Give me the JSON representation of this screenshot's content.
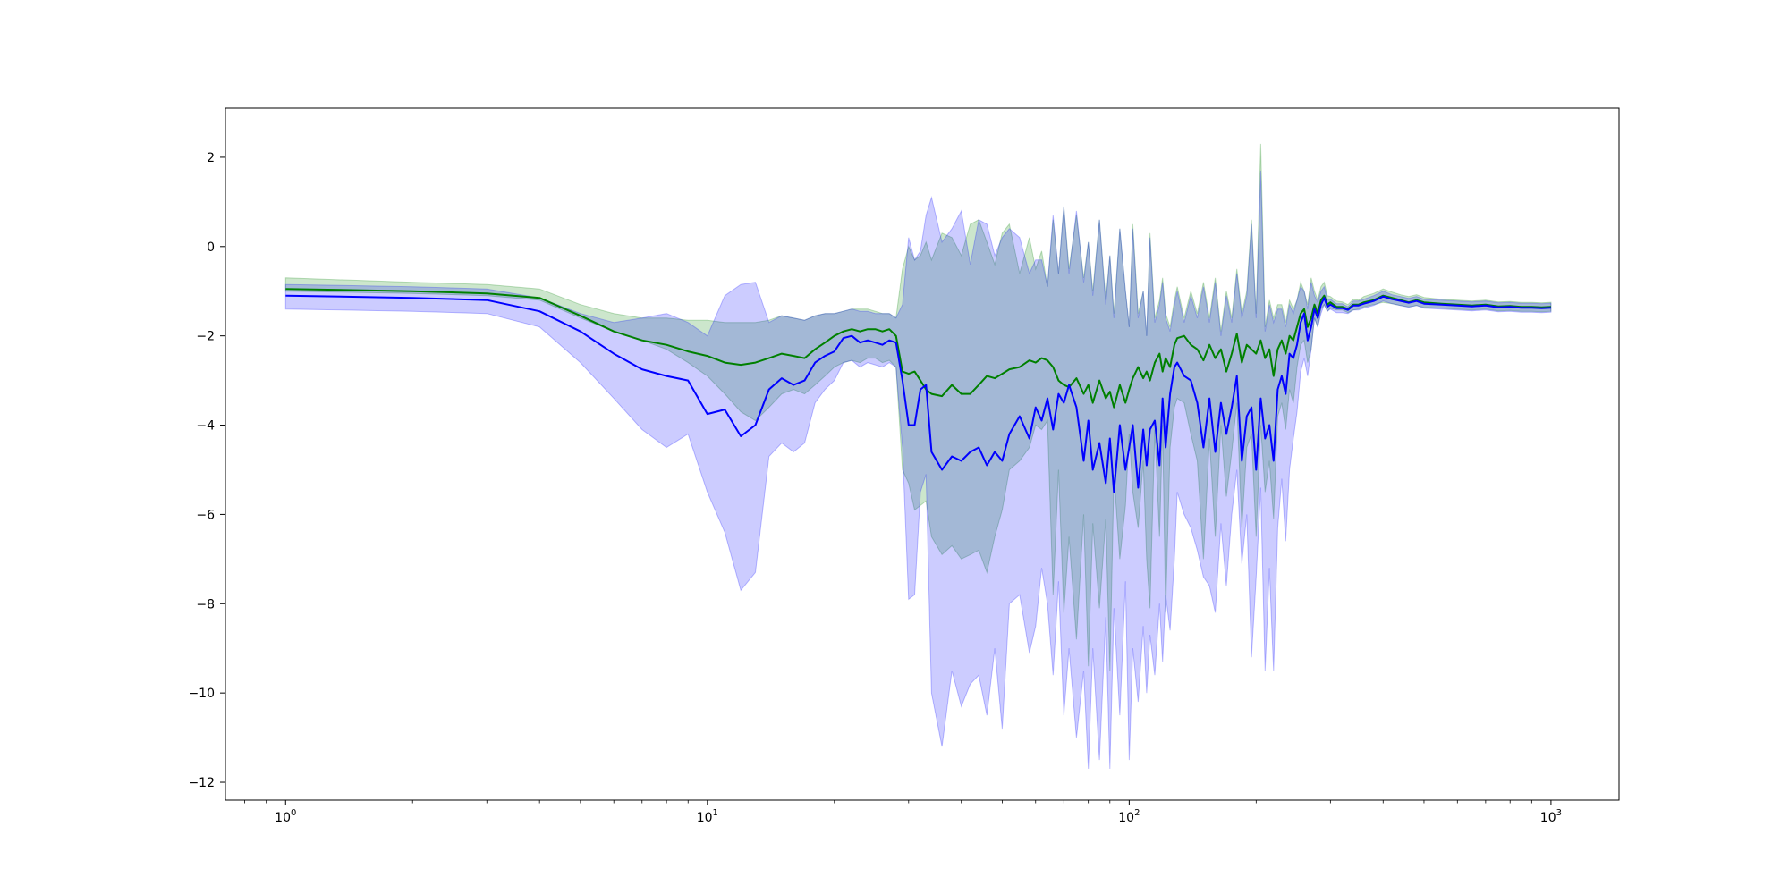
{
  "chart_data": {
    "type": "line",
    "title": "",
    "xlabel": "",
    "ylabel": "",
    "xscale": "log",
    "xlim": [
      0.72,
      1450
    ],
    "ylim": [
      -12.4,
      3.1
    ],
    "grid": false,
    "legend": "none",
    "xticks": [
      {
        "base": "10",
        "exp": "0",
        "value": 1
      },
      {
        "base": "10",
        "exp": "1",
        "value": 10
      },
      {
        "base": "10",
        "exp": "2",
        "value": 100
      },
      {
        "base": "10",
        "exp": "3",
        "value": 1000
      }
    ],
    "yticks": [
      {
        "label": "2",
        "value": 2
      },
      {
        "label": "0",
        "value": 0
      },
      {
        "label": "−2",
        "value": -2
      },
      {
        "label": "−4",
        "value": -4
      },
      {
        "label": "−6",
        "value": -6
      },
      {
        "label": "−8",
        "value": -8
      },
      {
        "label": "−10",
        "value": -10
      },
      {
        "label": "−12",
        "value": -12
      }
    ],
    "series": [
      {
        "color": "#008000",
        "band_color": "#008000",
        "x": [
          1,
          2,
          3,
          4,
          5,
          6,
          7,
          8,
          9,
          10,
          11,
          12,
          13,
          14,
          15,
          16,
          17,
          18,
          19,
          20,
          21,
          22,
          23,
          24,
          25,
          26,
          27,
          28,
          29,
          30,
          31,
          32,
          33,
          34,
          36,
          38,
          40,
          42,
          44,
          46,
          48,
          50,
          52,
          55,
          58,
          60,
          62,
          64,
          66,
          68,
          70,
          72,
          75,
          78,
          80,
          82,
          85,
          88,
          90,
          92,
          95,
          98,
          100,
          102,
          105,
          108,
          110,
          112,
          115,
          118,
          120,
          122,
          125,
          128,
          130,
          135,
          140,
          145,
          150,
          155,
          160,
          165,
          170,
          175,
          180,
          185,
          190,
          195,
          200,
          205,
          210,
          215,
          220,
          225,
          230,
          235,
          240,
          245,
          250,
          255,
          260,
          265,
          270,
          275,
          280,
          285,
          290,
          295,
          300,
          310,
          320,
          330,
          340,
          350,
          360,
          380,
          400,
          420,
          440,
          460,
          480,
          500,
          550,
          600,
          650,
          700,
          750,
          800,
          850,
          900,
          950,
          1000
        ],
        "y": [
          -0.95,
          -1.0,
          -1.05,
          -1.15,
          -1.55,
          -1.9,
          -2.1,
          -2.2,
          -2.35,
          -2.45,
          -2.6,
          -2.65,
          -2.6,
          -2.5,
          -2.4,
          -2.45,
          -2.5,
          -2.3,
          -2.15,
          -2.0,
          -1.9,
          -1.85,
          -1.9,
          -1.85,
          -1.85,
          -1.9,
          -1.85,
          -2.0,
          -2.8,
          -2.85,
          -2.8,
          -3.0,
          -3.2,
          -3.3,
          -3.35,
          -3.1,
          -3.3,
          -3.3,
          -3.1,
          -2.9,
          -2.95,
          -2.85,
          -2.75,
          -2.7,
          -2.55,
          -2.6,
          -2.5,
          -2.55,
          -2.7,
          -3.0,
          -3.1,
          -3.15,
          -2.95,
          -3.3,
          -3.1,
          -3.5,
          -3.0,
          -3.4,
          -3.25,
          -3.6,
          -3.1,
          -3.5,
          -3.2,
          -2.95,
          -2.7,
          -2.95,
          -2.8,
          -3.0,
          -2.6,
          -2.4,
          -2.8,
          -2.5,
          -2.7,
          -2.2,
          -2.05,
          -2.0,
          -2.2,
          -2.3,
          -2.55,
          -2.2,
          -2.5,
          -2.3,
          -2.8,
          -2.4,
          -1.95,
          -2.6,
          -2.2,
          -2.3,
          -2.4,
          -2.1,
          -2.5,
          -2.3,
          -2.9,
          -2.3,
          -2.1,
          -2.4,
          -2.0,
          -2.1,
          -1.8,
          -1.5,
          -1.4,
          -1.8,
          -1.6,
          -1.3,
          -1.5,
          -1.2,
          -1.1,
          -1.3,
          -1.25,
          -1.35,
          -1.35,
          -1.4,
          -1.3,
          -1.3,
          -1.25,
          -1.2,
          -1.1,
          -1.15,
          -1.2,
          -1.25,
          -1.2,
          -1.25,
          -1.28,
          -1.3,
          -1.32,
          -1.3,
          -1.34,
          -1.33,
          -1.35,
          -1.35,
          -1.36,
          -1.35
        ],
        "lower": [
          -1.0,
          -1.05,
          -1.1,
          -1.2,
          -1.6,
          -1.9,
          -2.1,
          -2.3,
          -2.6,
          -2.9,
          -3.3,
          -3.7,
          -3.9,
          -3.6,
          -3.3,
          -3.2,
          -3.3,
          -3.1,
          -2.9,
          -2.7,
          -2.6,
          -2.55,
          -2.6,
          -2.5,
          -2.5,
          -2.6,
          -2.55,
          -2.7,
          -5.0,
          -5.3,
          -5.9,
          -5.8,
          -5.7,
          -6.5,
          -6.9,
          -6.7,
          -7.0,
          -6.9,
          -6.8,
          -7.3,
          -6.5,
          -5.9,
          -5.0,
          -4.8,
          -4.5,
          -4.0,
          -4.1,
          -3.9,
          -7.8,
          -5.0,
          -8.2,
          -6.5,
          -8.8,
          -6.0,
          -9.4,
          -6.2,
          -8.1,
          -6.1,
          -9.5,
          -5.1,
          -7.0,
          -5.8,
          -4.2,
          -5.5,
          -6.3,
          -4.8,
          -7.0,
          -8.1,
          -4.1,
          -6.5,
          -4.0,
          -8.2,
          -4.5,
          -3.6,
          -3.4,
          -3.5,
          -4.2,
          -4.8,
          -7.0,
          -4.3,
          -6.5,
          -4.0,
          -5.6,
          -4.6,
          -3.5,
          -6.3,
          -4.5,
          -4.2,
          -6.5,
          -4.0,
          -5.5,
          -4.8,
          -6.1,
          -3.8,
          -3.5,
          -4.1,
          -3.2,
          -3.5,
          -2.7,
          -2.2,
          -2.1,
          -2.6,
          -2.3,
          -1.6,
          -1.8,
          -1.4,
          -1.3,
          -1.45,
          -1.38,
          -1.42,
          -1.42,
          -1.48,
          -1.42,
          -1.4,
          -1.35,
          -1.3,
          -1.25,
          -1.28,
          -1.32,
          -1.35,
          -1.32,
          -1.36,
          -1.38,
          -1.4,
          -1.42,
          -1.4,
          -1.44,
          -1.43,
          -1.45,
          -1.45,
          -1.46,
          -1.45
        ],
        "upper": [
          -0.7,
          -0.8,
          -0.85,
          -0.95,
          -1.3,
          -1.5,
          -1.6,
          -1.6,
          -1.65,
          -1.65,
          -1.7,
          -1.7,
          -1.7,
          -1.65,
          -1.55,
          -1.6,
          -1.65,
          -1.55,
          -1.5,
          -1.5,
          -1.45,
          -1.4,
          -1.4,
          -1.4,
          -1.45,
          -1.5,
          -1.5,
          -1.6,
          -0.5,
          -0.0,
          -0.3,
          -0.2,
          0.1,
          -0.3,
          0.3,
          0.2,
          -0.2,
          0.5,
          0.6,
          0.1,
          -0.4,
          0.3,
          0.5,
          -0.6,
          0.2,
          -0.5,
          -0.1,
          -0.9,
          0.6,
          -0.6,
          0.9,
          -0.5,
          0.7,
          -0.7,
          0.1,
          -1.0,
          0.6,
          -1.2,
          -0.2,
          -1.5,
          0.4,
          -1.0,
          -1.8,
          0.5,
          -1.5,
          -1.0,
          -2.0,
          0.3,
          -1.6,
          -1.2,
          -0.7,
          -1.5,
          -1.8,
          -1.2,
          -0.9,
          -1.6,
          -1.0,
          -1.5,
          -0.8,
          -1.6,
          -0.7,
          -1.9,
          -1.0,
          -1.6,
          -0.5,
          -1.5,
          -1.0,
          0.6,
          -1.5,
          2.3,
          -1.8,
          -1.2,
          -1.6,
          -1.3,
          -1.3,
          -1.7,
          -1.2,
          -1.4,
          -1.2,
          -0.8,
          -1.0,
          -1.3,
          -0.7,
          -1.0,
          -1.2,
          -0.9,
          -0.8,
          -1.1,
          -1.12,
          -1.22,
          -1.24,
          -1.3,
          -1.18,
          -1.2,
          -1.12,
          -1.05,
          -0.95,
          -1.02,
          -1.08,
          -1.12,
          -1.08,
          -1.14,
          -1.18,
          -1.2,
          -1.22,
          -1.2,
          -1.24,
          -1.23,
          -1.25,
          -1.25,
          -1.26,
          -1.25
        ]
      },
      {
        "color": "#0000ff",
        "band_color": "#0000ff",
        "x": [
          1,
          2,
          3,
          4,
          5,
          6,
          7,
          8,
          9,
          10,
          11,
          12,
          13,
          14,
          15,
          16,
          17,
          18,
          19,
          20,
          21,
          22,
          23,
          24,
          25,
          26,
          27,
          28,
          29,
          30,
          31,
          32,
          33,
          34,
          36,
          38,
          40,
          42,
          44,
          46,
          48,
          50,
          52,
          55,
          58,
          60,
          62,
          64,
          66,
          68,
          70,
          72,
          75,
          78,
          80,
          82,
          85,
          88,
          90,
          92,
          95,
          98,
          100,
          102,
          105,
          108,
          110,
          112,
          115,
          118,
          120,
          122,
          125,
          128,
          130,
          135,
          140,
          145,
          150,
          155,
          160,
          165,
          170,
          175,
          180,
          185,
          190,
          195,
          200,
          205,
          210,
          215,
          220,
          225,
          230,
          235,
          240,
          245,
          250,
          255,
          260,
          265,
          270,
          275,
          280,
          285,
          290,
          295,
          300,
          310,
          320,
          330,
          340,
          350,
          360,
          380,
          400,
          420,
          440,
          460,
          480,
          500,
          550,
          600,
          650,
          700,
          750,
          800,
          850,
          900,
          950,
          1000
        ],
        "y": [
          -1.1,
          -1.15,
          -1.2,
          -1.45,
          -1.9,
          -2.4,
          -2.75,
          -2.9,
          -3.0,
          -3.75,
          -3.65,
          -4.25,
          -4.0,
          -3.2,
          -2.95,
          -3.1,
          -3.0,
          -2.6,
          -2.45,
          -2.35,
          -2.05,
          -2.0,
          -2.15,
          -2.1,
          -2.15,
          -2.2,
          -2.1,
          -2.15,
          -3.0,
          -4.0,
          -4.0,
          -3.2,
          -3.1,
          -4.6,
          -5.0,
          -4.7,
          -4.8,
          -4.6,
          -4.5,
          -4.9,
          -4.6,
          -4.8,
          -4.2,
          -3.8,
          -4.3,
          -3.6,
          -3.9,
          -3.4,
          -4.1,
          -3.3,
          -3.5,
          -3.1,
          -3.6,
          -4.8,
          -3.9,
          -5.0,
          -4.4,
          -5.3,
          -4.3,
          -5.5,
          -4.0,
          -5.0,
          -4.5,
          -4.0,
          -5.4,
          -4.1,
          -4.9,
          -4.1,
          -3.9,
          -4.9,
          -3.4,
          -4.5,
          -3.3,
          -2.7,
          -2.6,
          -2.9,
          -3.0,
          -3.5,
          -4.5,
          -3.4,
          -4.6,
          -3.5,
          -4.2,
          -3.6,
          -2.9,
          -4.8,
          -3.8,
          -3.6,
          -5.0,
          -3.4,
          -4.3,
          -4.0,
          -4.8,
          -3.2,
          -2.9,
          -3.3,
          -2.4,
          -2.5,
          -2.2,
          -1.7,
          -1.5,
          -2.1,
          -1.8,
          -1.4,
          -1.6,
          -1.3,
          -1.15,
          -1.35,
          -1.3,
          -1.38,
          -1.38,
          -1.42,
          -1.32,
          -1.32,
          -1.28,
          -1.22,
          -1.12,
          -1.18,
          -1.22,
          -1.26,
          -1.22,
          -1.28,
          -1.3,
          -1.32,
          -1.34,
          -1.32,
          -1.36,
          -1.35,
          -1.37,
          -1.37,
          -1.38,
          -1.37
        ],
        "lower": [
          -1.4,
          -1.45,
          -1.5,
          -1.8,
          -2.6,
          -3.4,
          -4.1,
          -4.5,
          -4.2,
          -5.5,
          -6.4,
          -7.7,
          -7.3,
          -4.7,
          -4.4,
          -4.6,
          -4.4,
          -3.5,
          -3.2,
          -3.0,
          -2.6,
          -2.55,
          -2.7,
          -2.6,
          -2.65,
          -2.7,
          -2.6,
          -2.7,
          -4.5,
          -7.9,
          -7.8,
          -5.5,
          -5.1,
          -10.0,
          -11.2,
          -9.5,
          -10.3,
          -9.8,
          -9.6,
          -10.5,
          -9.0,
          -10.8,
          -8.0,
          -7.8,
          -9.1,
          -8.5,
          -7.2,
          -8.0,
          -9.6,
          -7.5,
          -10.5,
          -9.0,
          -11.0,
          -9.5,
          -11.7,
          -9.0,
          -11.5,
          -8.3,
          -11.7,
          -8.1,
          -10.5,
          -7.5,
          -11.5,
          -9.0,
          -10.2,
          -8.5,
          -10.0,
          -8.7,
          -9.6,
          -8.0,
          -9.3,
          -7.8,
          -8.6,
          -7.0,
          -5.5,
          -6.0,
          -6.3,
          -6.8,
          -7.4,
          -7.6,
          -8.2,
          -6.2,
          -7.6,
          -6.0,
          -5.0,
          -7.1,
          -6.0,
          -9.2,
          -7.4,
          -5.4,
          -9.5,
          -7.2,
          -9.5,
          -6.3,
          -5.2,
          -6.6,
          -5.0,
          -4.3,
          -3.7,
          -2.8,
          -2.5,
          -2.9,
          -2.3,
          -1.6,
          -1.8,
          -1.5,
          -1.3,
          -1.45,
          -1.4,
          -1.48,
          -1.48,
          -1.5,
          -1.42,
          -1.42,
          -1.38,
          -1.32,
          -1.22,
          -1.28,
          -1.32,
          -1.36,
          -1.32,
          -1.38,
          -1.4,
          -1.42,
          -1.44,
          -1.42,
          -1.46,
          -1.45,
          -1.47,
          -1.47,
          -1.48,
          -1.47
        ],
        "upper": [
          -0.85,
          -0.9,
          -0.95,
          -1.15,
          -1.5,
          -1.7,
          -1.6,
          -1.5,
          -1.7,
          -2.0,
          -1.1,
          -0.85,
          -0.8,
          -1.7,
          -1.55,
          -1.6,
          -1.65,
          -1.55,
          -1.5,
          -1.5,
          -1.45,
          -1.4,
          -1.45,
          -1.45,
          -1.5,
          -1.5,
          -1.5,
          -1.6,
          -1.3,
          0.2,
          -0.3,
          -0.1,
          0.7,
          1.1,
          0.1,
          0.4,
          0.8,
          -0.4,
          0.6,
          0.5,
          -0.2,
          0.2,
          0.4,
          0.2,
          -0.6,
          -0.3,
          -0.3,
          -0.9,
          0.7,
          -0.6,
          0.9,
          -0.6,
          0.8,
          -0.8,
          0.1,
          -1.1,
          0.6,
          -1.3,
          -0.2,
          -1.6,
          0.4,
          -1.0,
          -1.8,
          0.4,
          -1.6,
          -1.0,
          -2.0,
          0.2,
          -1.7,
          -1.3,
          -0.8,
          -1.6,
          -1.9,
          -1.3,
          -1.0,
          -1.7,
          -1.1,
          -1.6,
          -0.9,
          -1.7,
          -0.8,
          -2.0,
          -1.1,
          -1.7,
          -0.6,
          -1.6,
          -1.1,
          0.5,
          -1.6,
          1.7,
          -1.9,
          -1.3,
          -1.7,
          -1.4,
          -1.4,
          -1.8,
          -1.3,
          -1.5,
          -1.2,
          -0.9,
          -1.0,
          -1.4,
          -0.8,
          -1.1,
          -1.25,
          -1.0,
          -0.9,
          -1.18,
          -1.18,
          -1.28,
          -1.28,
          -1.35,
          -1.22,
          -1.22,
          -1.18,
          -1.1,
          -1.0,
          -1.08,
          -1.12,
          -1.16,
          -1.12,
          -1.18,
          -1.2,
          -1.22,
          -1.24,
          -1.22,
          -1.26,
          -1.25,
          -1.27,
          -1.27,
          -1.28,
          -1.27
        ]
      }
    ]
  }
}
